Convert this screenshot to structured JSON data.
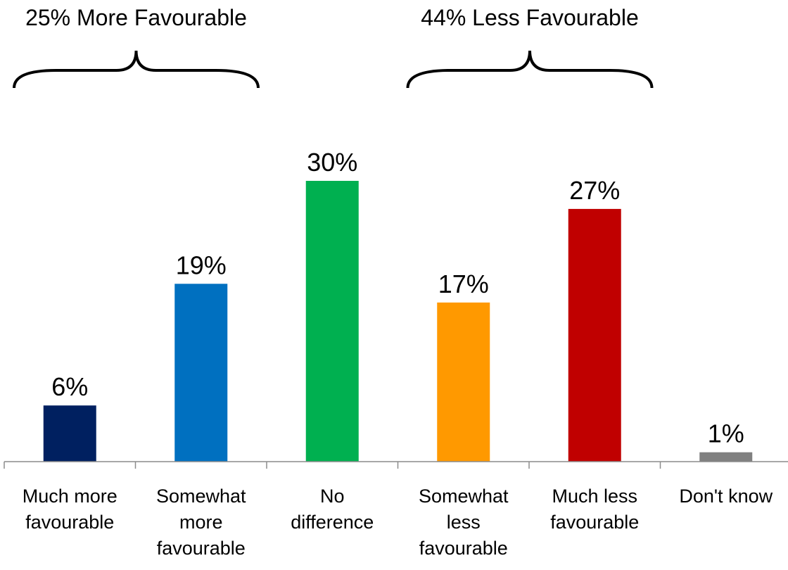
{
  "chart_data": {
    "type": "bar",
    "title": "",
    "xlabel": "",
    "ylabel": "",
    "ylim": [
      0,
      30
    ],
    "categories": [
      [
        "Much more",
        "favourable"
      ],
      [
        "Somewhat",
        "more",
        "favourable"
      ],
      [
        "No",
        "difference"
      ],
      [
        "Somewhat",
        "less",
        "favourable"
      ],
      [
        "Much less",
        "favourable"
      ],
      [
        "Don't know"
      ]
    ],
    "values": [
      6,
      19,
      30,
      17,
      27,
      1
    ],
    "data_labels": [
      "6%",
      "19%",
      "30%",
      "17%",
      "27%",
      "1%"
    ],
    "colors": [
      "#002060",
      "#0070c0",
      "#00b050",
      "#ff9900",
      "#c00000",
      "#808080"
    ],
    "groups": [
      {
        "label": "25% More Favourable",
        "from": 0,
        "to": 1
      },
      {
        "label": "44% Less Favourable",
        "from": 3,
        "to": 4
      }
    ],
    "grid": false,
    "legend": "none"
  }
}
